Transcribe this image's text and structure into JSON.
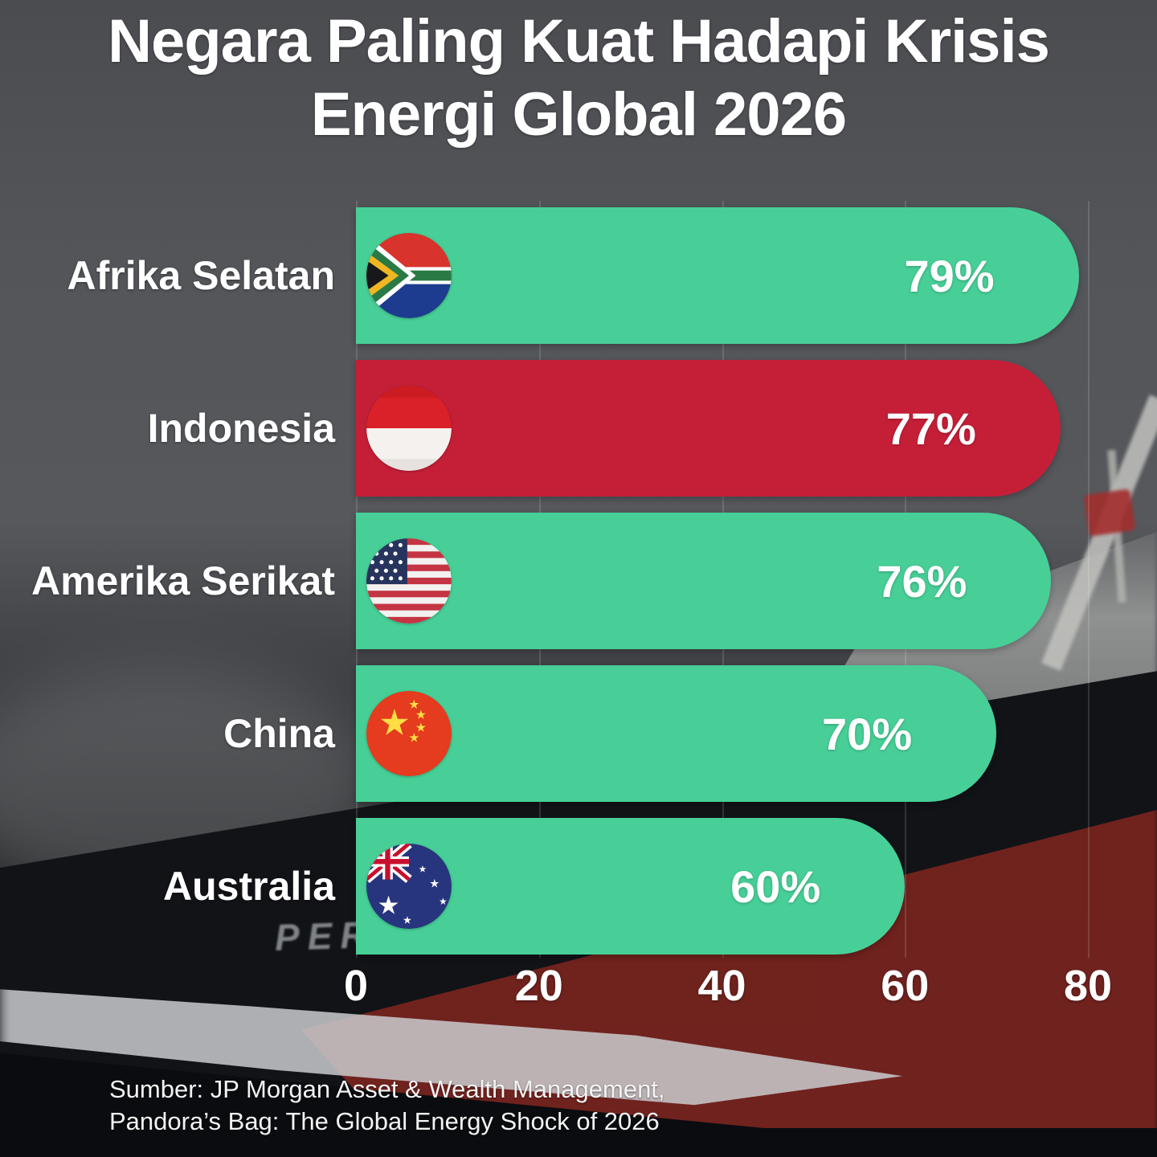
{
  "header": {
    "title_lines": [
      "Negara Paling Kuat Hadapi Krisis",
      "Energi Global 2026"
    ]
  },
  "chart_data": {
    "type": "bar",
    "orientation": "horizontal",
    "title": "Negara Paling Kuat Hadapi Krisis Energi Global 2026",
    "categories": [
      "Afrika Selatan",
      "Indonesia",
      "Amerika Serikat",
      "China",
      "Australia"
    ],
    "values": [
      79,
      77,
      76,
      70,
      60
    ],
    "value_labels": [
      "79%",
      "77%",
      "76%",
      "70%",
      "60%"
    ],
    "bar_colors": [
      "#47CF97",
      "#C51F38",
      "#47CF97",
      "#47CF97",
      "#47CF97"
    ],
    "flag_icons": [
      "flag-south-africa-icon",
      "flag-indonesia-icon",
      "flag-usa-icon",
      "flag-china-icon",
      "flag-australia-icon"
    ],
    "xlim": [
      0,
      80
    ],
    "x_ticks": [
      "0",
      "20",
      "40",
      "60",
      "80"
    ],
    "grid": true,
    "legend": "none",
    "source_lines": [
      "Sumber: JP Morgan Asset & Wealth Management,",
      "Pandora’s Bag: The Global Energy Shock of 2026"
    ]
  },
  "background": {
    "hull_text": "PER"
  },
  "colors": {
    "bar_green": "#47CF97",
    "bar_red": "#C51F38",
    "background_top": "#4B4C50",
    "text": "#FFFFFF",
    "gridline": "rgba(255,255,255,0.14)"
  }
}
